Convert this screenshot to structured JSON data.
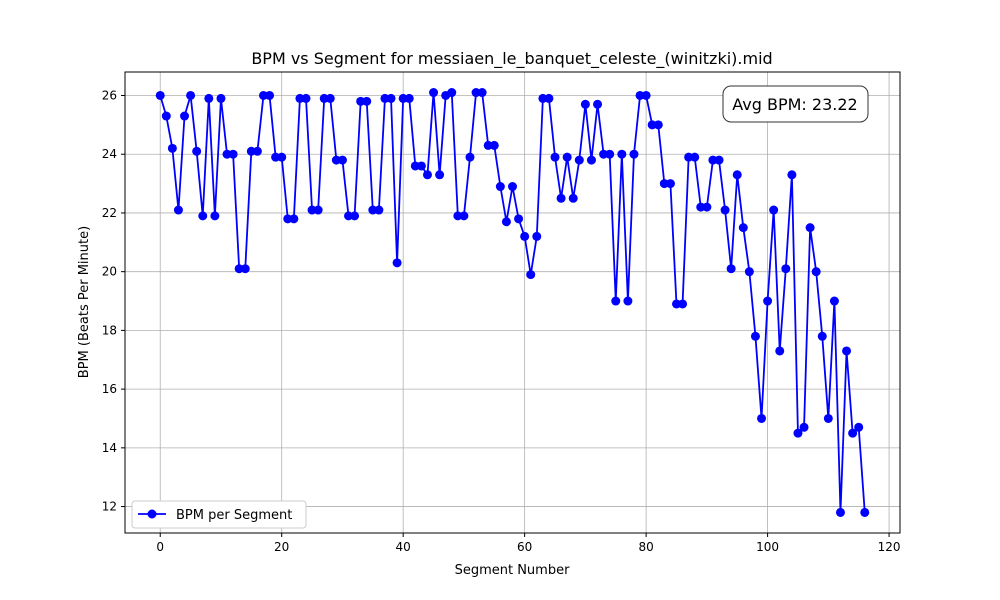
{
  "chart_data": {
    "type": "line",
    "title": "BPM vs Segment for messiaen_le_banquet_celeste_(winitzki).mid",
    "xlabel": "Segment Number",
    "ylabel": "BPM (Beats Per Minute)",
    "xlim": [
      -5.8,
      121.8
    ],
    "ylim": [
      11.1,
      26.8
    ],
    "xticks": [
      0,
      20,
      40,
      60,
      80,
      100,
      120
    ],
    "yticks": [
      12,
      14,
      16,
      18,
      20,
      22,
      24,
      26
    ],
    "grid": true,
    "legend_position": "lower-left",
    "annotation": "Avg BPM: 23.22",
    "series": [
      {
        "name": "BPM per Segment",
        "color": "#0000ff",
        "marker": "circle",
        "x": [
          0,
          1,
          2,
          3,
          4,
          5,
          6,
          7,
          8,
          9,
          10,
          11,
          12,
          13,
          14,
          15,
          16,
          17,
          18,
          19,
          20,
          21,
          22,
          23,
          24,
          25,
          26,
          27,
          28,
          29,
          30,
          31,
          32,
          33,
          34,
          35,
          36,
          37,
          38,
          39,
          40,
          41,
          42,
          43,
          44,
          45,
          46,
          47,
          48,
          49,
          50,
          51,
          52,
          53,
          54,
          55,
          56,
          57,
          58,
          59,
          60,
          61,
          62,
          63,
          64,
          65,
          66,
          67,
          68,
          69,
          70,
          71,
          72,
          73,
          74,
          75,
          76,
          77,
          78,
          79,
          80,
          81,
          82,
          83,
          84,
          85,
          86,
          87,
          88,
          89,
          90,
          91,
          92,
          93,
          94,
          95,
          96,
          97,
          98,
          99,
          100,
          101,
          102,
          103,
          104,
          105,
          106,
          107,
          108,
          109,
          110,
          111,
          112,
          113,
          114,
          115,
          116
        ],
        "y": [
          26.0,
          25.3,
          24.2,
          22.1,
          25.3,
          26.0,
          24.1,
          21.9,
          25.9,
          21.9,
          25.9,
          24.0,
          24.0,
          20.1,
          20.1,
          24.1,
          24.1,
          26.0,
          26.0,
          23.9,
          23.9,
          21.8,
          21.8,
          25.9,
          25.9,
          22.1,
          22.1,
          25.9,
          25.9,
          23.8,
          23.8,
          21.9,
          21.9,
          25.8,
          25.8,
          22.1,
          22.1,
          25.9,
          25.9,
          20.3,
          25.9,
          25.9,
          23.6,
          23.6,
          23.3,
          26.1,
          23.3,
          26.0,
          26.1,
          21.9,
          21.9,
          23.9,
          26.1,
          26.1,
          24.3,
          24.3,
          22.9,
          21.7,
          22.9,
          21.8,
          21.2,
          19.9,
          21.2,
          25.9,
          25.9,
          23.9,
          22.5,
          23.9,
          22.5,
          23.8,
          25.7,
          23.8,
          25.7,
          24.0,
          24.0,
          19.0,
          24.0,
          19.0,
          24.0,
          26.0,
          26.0,
          25.0,
          25.0,
          23.0,
          23.0,
          18.9,
          18.9,
          23.9,
          23.9,
          22.2,
          22.2,
          23.8,
          23.8,
          22.1,
          20.1,
          23.3,
          21.5,
          20.0,
          17.8,
          15.0,
          19.0,
          22.1,
          17.3,
          20.1,
          23.3,
          14.5,
          14.7,
          21.5,
          20.0,
          17.8,
          15.0,
          19.0,
          11.8,
          17.3,
          14.5,
          14.7,
          11.8
        ]
      }
    ]
  }
}
